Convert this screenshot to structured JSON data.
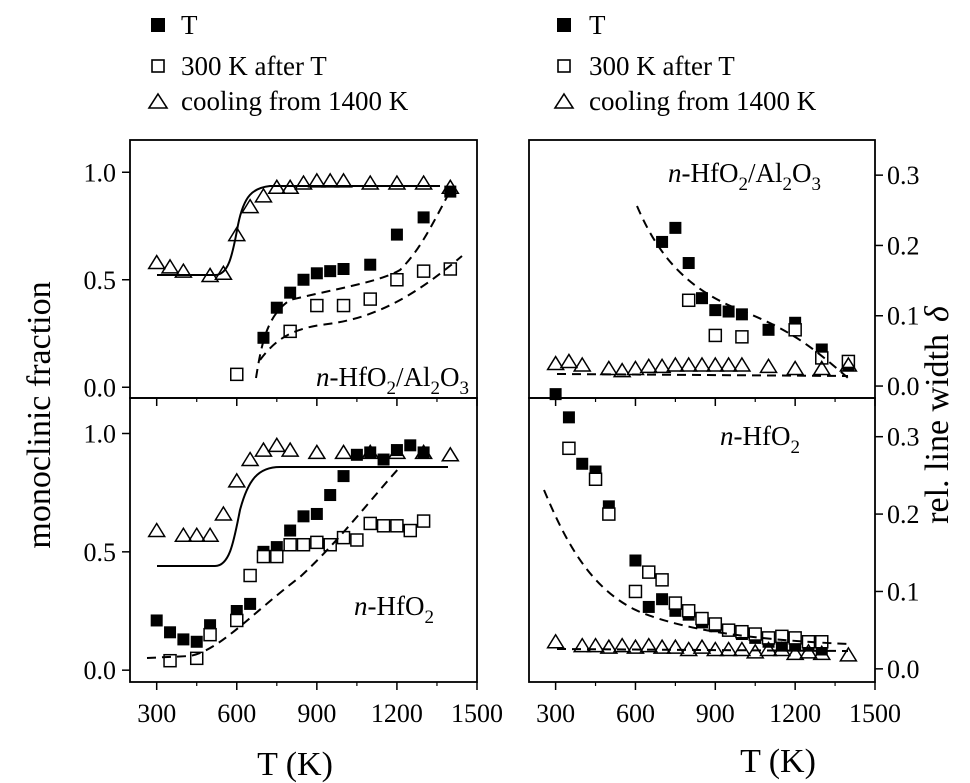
{
  "legends": [
    {
      "items": [
        {
          "marker": "filled-square",
          "label": "T"
        },
        {
          "marker": "open-square",
          "label": "300 K after T"
        },
        {
          "marker": "open-triangle",
          "label": "cooling from 1400 K"
        }
      ]
    },
    {
      "items": [
        {
          "marker": "filled-square",
          "label": "T"
        },
        {
          "marker": "open-square",
          "label": "300 K after T"
        },
        {
          "marker": "open-triangle",
          "label": "cooling from 1400 K"
        }
      ]
    }
  ],
  "axes": {
    "left_ylabel": "monoclinic fraction",
    "right_ylabel_text": "rel. line width",
    "right_ylabel_symbol": "δ",
    "left_xlabel": "T (K)",
    "right_xlabel": "T (K)"
  },
  "panel_labels": {
    "top_left": {
      "prefix": "n",
      "main": "-HfO",
      "sub1": "2",
      "mid": "/Al",
      "sub2": "2",
      "end": "O",
      "sub3": "3"
    },
    "top_right": {
      "prefix": "n",
      "main": "-HfO",
      "sub1": "2",
      "mid": "/Al",
      "sub2": "2",
      "end": "O",
      "sub3": "3"
    },
    "bottom_left": {
      "prefix": "n",
      "main": "-HfO",
      "sub1": "2"
    },
    "bottom_right": {
      "prefix": "n",
      "main": "-HfO",
      "sub1": "2"
    }
  },
  "chart_data": [
    {
      "id": "top-left",
      "type": "scatter",
      "xlim": [
        200,
        1500
      ],
      "ylim": [
        -0.05,
        1.15
      ],
      "xticks": [
        300,
        600,
        900,
        1200,
        1500
      ],
      "yticks": [
        0.0,
        0.5,
        1.0
      ],
      "ytick_labels": [
        "0.0",
        "0.5",
        "1.0"
      ],
      "series": [
        {
          "name": "T",
          "marker": "filled-square",
          "x": [
            700,
            750,
            800,
            850,
            900,
            950,
            1000,
            1100,
            1200,
            1300,
            1400
          ],
          "y": [
            0.23,
            0.37,
            0.44,
            0.5,
            0.53,
            0.54,
            0.55,
            0.57,
            0.71,
            0.79,
            0.91
          ]
        },
        {
          "name": "300 K after T",
          "marker": "open-square",
          "x": [
            600,
            800,
            900,
            1000,
            1100,
            1200,
            1300,
            1400
          ],
          "y": [
            0.06,
            0.26,
            0.38,
            0.38,
            0.41,
            0.5,
            0.54,
            0.55
          ]
        },
        {
          "name": "cooling from 1400 K",
          "marker": "open-triangle",
          "x": [
            300,
            350,
            400,
            500,
            550,
            600,
            650,
            700,
            750,
            800,
            850,
            900,
            950,
            1000,
            1100,
            1200,
            1300,
            1400
          ],
          "y": [
            0.58,
            0.56,
            0.54,
            0.52,
            0.53,
            0.71,
            0.84,
            0.89,
            0.93,
            0.93,
            0.95,
            0.96,
            0.96,
            0.96,
            0.95,
            0.95,
            0.95,
            0.93
          ]
        }
      ]
    },
    {
      "id": "top-right",
      "type": "scatter",
      "xlim": [
        200,
        1500
      ],
      "ylim": [
        -0.017,
        0.35
      ],
      "xticks": [
        300,
        600,
        900,
        1200,
        1500
      ],
      "yticks": [
        0.0,
        0.1,
        0.2,
        0.3
      ],
      "ytick_labels": [
        "0.0",
        "0.1",
        "0.2",
        "0.3"
      ],
      "series": [
        {
          "name": "T",
          "marker": "filled-square",
          "x": [
            700,
            750,
            800,
            850,
            900,
            950,
            1000,
            1100,
            1200,
            1300,
            1400
          ],
          "y": [
            0.205,
            0.225,
            0.175,
            0.125,
            0.108,
            0.106,
            0.102,
            0.08,
            0.09,
            0.052,
            0.03
          ]
        },
        {
          "name": "300 K after T",
          "marker": "open-square",
          "x": [
            800,
            900,
            1000,
            1200,
            1300,
            1400
          ],
          "y": [
            0.122,
            0.072,
            0.07,
            0.08,
            0.04,
            0.035
          ]
        },
        {
          "name": "cooling from 1400 K",
          "marker": "open-triangle",
          "x": [
            300,
            350,
            400,
            500,
            550,
            600,
            650,
            700,
            750,
            800,
            850,
            900,
            950,
            1000,
            1100,
            1200,
            1300,
            1400
          ],
          "y": [
            0.032,
            0.035,
            0.03,
            0.025,
            0.022,
            0.025,
            0.028,
            0.028,
            0.03,
            0.03,
            0.03,
            0.03,
            0.03,
            0.03,
            0.028,
            0.025,
            0.025,
            0.03
          ]
        }
      ]
    },
    {
      "id": "bottom-left",
      "type": "scatter",
      "xlim": [
        200,
        1500
      ],
      "ylim": [
        -0.05,
        1.15
      ],
      "xticks": [
        300,
        600,
        900,
        1200,
        1500
      ],
      "yticks": [
        0.0,
        0.5,
        1.0
      ],
      "ytick_labels": [
        "0.0",
        "0.5",
        "1.0"
      ],
      "series": [
        {
          "name": "T",
          "marker": "filled-square",
          "x": [
            300,
            350,
            400,
            450,
            500,
            600,
            650,
            700,
            750,
            800,
            850,
            900,
            950,
            1000,
            1050,
            1100,
            1150,
            1200,
            1250,
            1300
          ],
          "y": [
            0.21,
            0.16,
            0.13,
            0.12,
            0.19,
            0.25,
            0.28,
            0.5,
            0.52,
            0.59,
            0.65,
            0.66,
            0.74,
            0.82,
            0.91,
            0.92,
            0.89,
            0.93,
            0.95,
            0.92
          ]
        },
        {
          "name": "300 K after T",
          "marker": "open-square",
          "x": [
            350,
            450,
            500,
            600,
            650,
            700,
            750,
            800,
            850,
            900,
            950,
            1000,
            1050,
            1100,
            1150,
            1200,
            1250,
            1300
          ],
          "y": [
            0.04,
            0.05,
            0.15,
            0.21,
            0.4,
            0.48,
            0.48,
            0.53,
            0.53,
            0.54,
            0.53,
            0.56,
            0.55,
            0.62,
            0.61,
            0.61,
            0.59,
            0.63
          ]
        },
        {
          "name": "cooling from 1400 K",
          "marker": "open-triangle",
          "x": [
            300,
            400,
            450,
            500,
            550,
            600,
            650,
            700,
            750,
            800,
            900,
            1000,
            1100,
            1200,
            1300,
            1400
          ],
          "y": [
            0.59,
            0.57,
            0.57,
            0.57,
            0.66,
            0.8,
            0.89,
            0.93,
            0.95,
            0.93,
            0.92,
            0.92,
            0.92,
            0.92,
            0.92,
            0.91
          ]
        }
      ]
    },
    {
      "id": "bottom-right",
      "type": "scatter",
      "xlim": [
        200,
        1500
      ],
      "ylim": [
        -0.017,
        0.35
      ],
      "xticks": [
        300,
        600,
        900,
        1200,
        1500
      ],
      "xtick_labels": [
        "300",
        "600",
        "900",
        "1200",
        "1500"
      ],
      "yticks": [
        0.0,
        0.1,
        0.2,
        0.3
      ],
      "ytick_labels": [
        "0.0",
        "0.1",
        "0.2",
        "0.3"
      ],
      "series": [
        {
          "name": "T",
          "marker": "filled-square",
          "x": [
            300,
            350,
            400,
            450,
            500,
            600,
            650,
            700,
            750,
            800,
            850,
            900,
            950,
            1000,
            1050,
            1100,
            1150,
            1200,
            1250,
            1300
          ],
          "y": [
            0.355,
            0.325,
            0.265,
            0.255,
            0.21,
            0.14,
            0.08,
            0.09,
            0.075,
            0.07,
            0.06,
            0.055,
            0.05,
            0.045,
            0.04,
            0.035,
            0.03,
            0.03,
            0.03,
            0.025
          ]
        },
        {
          "name": "300 K after T",
          "marker": "open-square",
          "x": [
            350,
            450,
            500,
            600,
            650,
            700,
            750,
            800,
            850,
            900,
            950,
            1000,
            1050,
            1100,
            1150,
            1200,
            1250,
            1300
          ],
          "y": [
            0.285,
            0.245,
            0.2,
            0.1,
            0.125,
            0.115,
            0.085,
            0.075,
            0.065,
            0.058,
            0.05,
            0.048,
            0.045,
            0.04,
            0.042,
            0.04,
            0.035,
            0.035
          ]
        },
        {
          "name": "cooling from 1400 K",
          "marker": "open-triangle",
          "x": [
            300,
            400,
            450,
            500,
            550,
            600,
            650,
            700,
            750,
            800,
            850,
            900,
            950,
            1000,
            1050,
            1100,
            1150,
            1200,
            1250,
            1300,
            1400
          ],
          "y": [
            0.035,
            0.03,
            0.03,
            0.028,
            0.03,
            0.028,
            0.03,
            0.028,
            0.028,
            0.025,
            0.028,
            0.025,
            0.025,
            0.025,
            0.022,
            0.025,
            0.025,
            0.02,
            0.022,
            0.02,
            0.018
          ]
        }
      ]
    }
  ]
}
